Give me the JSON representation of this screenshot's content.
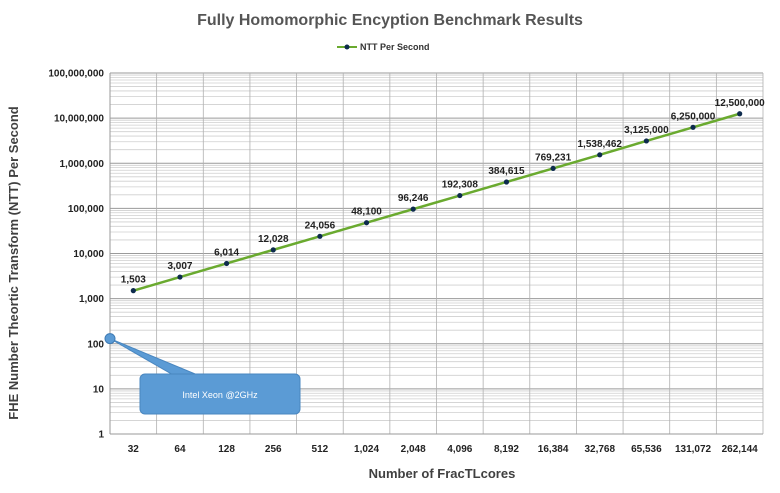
{
  "chart_data": {
    "type": "line",
    "title": "Fully Homomorphic Encyption Benchmark Results",
    "xlabel": "Number of FracTLcores",
    "ylabel": "FHE Number Theortic Transform (NTT) Per Second",
    "categories": [
      "32",
      "64",
      "128",
      "256",
      "512",
      "1,024",
      "2,048",
      "4,096",
      "8,192",
      "16,384",
      "32,768",
      "65,536",
      "131,072",
      "262,144"
    ],
    "y_scale": "log",
    "ylim": [
      1,
      100000000
    ],
    "y_ticks": [
      1,
      10,
      100,
      1000,
      10000,
      100000,
      1000000,
      10000000,
      100000000
    ],
    "y_tick_labels": [
      "1",
      "10",
      "100",
      "1,000",
      "10,000",
      "100,000",
      "1,000,000",
      "10,000,000",
      "100,000,000"
    ],
    "grid": true,
    "legend_position": "top-center",
    "series": [
      {
        "name": "NTT Per Second",
        "color": "#6aaa2f",
        "marker_color": "#0d2b4d",
        "values": [
          1503,
          3007,
          6014,
          12028,
          24056,
          48100,
          96246,
          192308,
          384615,
          769231,
          1538462,
          3125000,
          6250000,
          12500000
        ],
        "labels": [
          "1,503",
          "3,007",
          "6,014",
          "12,028",
          "24,056",
          "48,100",
          "96,246",
          "192,308",
          "384,615",
          "769,231",
          "1,538,462",
          "3,125,000",
          "6,250,000",
          "12,500,000"
        ]
      }
    ],
    "annotations": [
      {
        "text": "Intel Xeon @2GHz",
        "y": 130,
        "color": "#5b9bd5"
      }
    ]
  }
}
